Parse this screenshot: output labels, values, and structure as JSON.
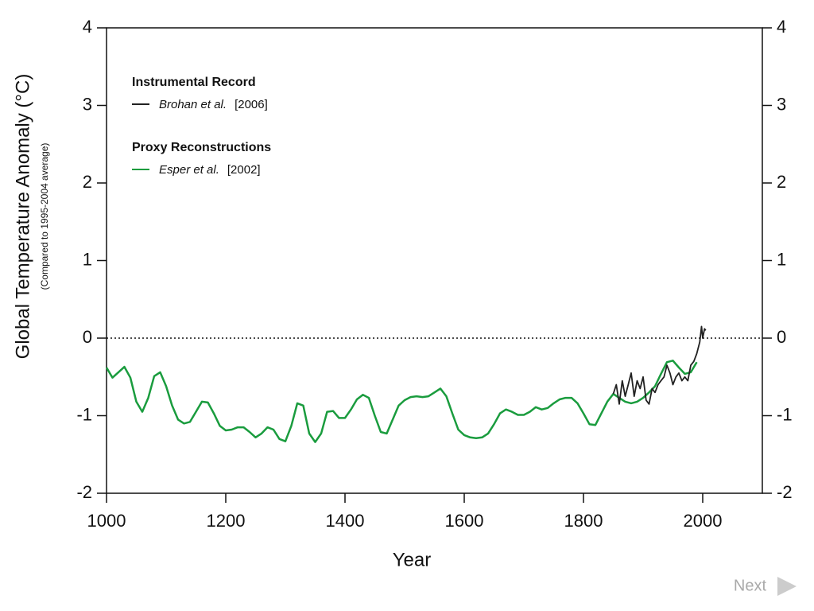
{
  "chart_data": {
    "type": "line",
    "y_label": "Global Temperature Anomaly (°C)",
    "y_sublabel": "(Compared to 1995-2004 average)",
    "x_label": "Year",
    "xlim": [
      1000,
      2100
    ],
    "xticks": [
      1000,
      1200,
      1400,
      1600,
      1800,
      2000
    ],
    "ylim": [
      -2,
      4
    ],
    "yticks": [
      -2,
      -1,
      0,
      1,
      2,
      3,
      4
    ],
    "right_axis": true,
    "hline": 0,
    "series": [
      {
        "group": "Instrumental Record",
        "name": "Brohan et al.",
        "source": "[2006]",
        "color": "#222222",
        "x": [
          1850,
          1855,
          1860,
          1865,
          1870,
          1875,
          1880,
          1885,
          1890,
          1895,
          1900,
          1905,
          1910,
          1915,
          1920,
          1925,
          1930,
          1935,
          1940,
          1945,
          1950,
          1955,
          1960,
          1965,
          1970,
          1975,
          1980,
          1985,
          1990,
          1995,
          1998,
          2000,
          2003,
          2005
        ],
        "values": [
          -0.72,
          -0.6,
          -0.85,
          -0.55,
          -0.75,
          -0.6,
          -0.45,
          -0.75,
          -0.55,
          -0.65,
          -0.5,
          -0.8,
          -0.85,
          -0.65,
          -0.7,
          -0.6,
          -0.55,
          -0.5,
          -0.35,
          -0.45,
          -0.6,
          -0.5,
          -0.45,
          -0.55,
          -0.5,
          -0.55,
          -0.35,
          -0.3,
          -0.2,
          -0.05,
          0.15,
          0.0,
          0.12,
          0.1
        ]
      },
      {
        "group": "Proxy Reconstructions",
        "name": "Esper et al.",
        "source": "[2002]",
        "color": "#1a9c3e",
        "x": [
          1000,
          1010,
          1020,
          1030,
          1040,
          1050,
          1060,
          1070,
          1080,
          1090,
          1100,
          1110,
          1120,
          1130,
          1140,
          1150,
          1160,
          1170,
          1180,
          1190,
          1200,
          1210,
          1220,
          1230,
          1240,
          1250,
          1260,
          1270,
          1280,
          1290,
          1300,
          1310,
          1320,
          1330,
          1340,
          1350,
          1360,
          1370,
          1380,
          1390,
          1400,
          1410,
          1420,
          1430,
          1440,
          1450,
          1460,
          1470,
          1480,
          1490,
          1500,
          1510,
          1520,
          1530,
          1540,
          1550,
          1560,
          1570,
          1580,
          1590,
          1600,
          1610,
          1620,
          1630,
          1640,
          1650,
          1660,
          1670,
          1680,
          1690,
          1700,
          1710,
          1720,
          1730,
          1740,
          1750,
          1760,
          1770,
          1780,
          1790,
          1800,
          1810,
          1820,
          1830,
          1840,
          1850,
          1860,
          1870,
          1880,
          1890,
          1900,
          1910,
          1920,
          1930,
          1940,
          1950,
          1960,
          1970,
          1980,
          1990
        ],
        "values": [
          -0.38,
          -0.51,
          -0.44,
          -0.37,
          -0.51,
          -0.82,
          -0.95,
          -0.77,
          -0.49,
          -0.44,
          -0.62,
          -0.87,
          -1.05,
          -1.1,
          -1.08,
          -0.95,
          -0.82,
          -0.83,
          -0.97,
          -1.13,
          -1.19,
          -1.18,
          -1.15,
          -1.15,
          -1.21,
          -1.28,
          -1.23,
          -1.15,
          -1.18,
          -1.3,
          -1.33,
          -1.13,
          -0.84,
          -0.87,
          -1.23,
          -1.34,
          -1.23,
          -0.95,
          -0.94,
          -1.03,
          -1.03,
          -0.92,
          -0.79,
          -0.73,
          -0.77,
          -1.0,
          -1.21,
          -1.23,
          -1.05,
          -0.87,
          -0.8,
          -0.76,
          -0.75,
          -0.76,
          -0.75,
          -0.7,
          -0.65,
          -0.75,
          -0.97,
          -1.18,
          -1.25,
          -1.28,
          -1.29,
          -1.28,
          -1.23,
          -1.11,
          -0.97,
          -0.92,
          -0.95,
          -0.99,
          -0.99,
          -0.95,
          -0.89,
          -0.92,
          -0.9,
          -0.84,
          -0.79,
          -0.77,
          -0.77,
          -0.84,
          -0.97,
          -1.11,
          -1.12,
          -0.97,
          -0.82,
          -0.72,
          -0.77,
          -0.82,
          -0.84,
          -0.82,
          -0.77,
          -0.7,
          -0.62,
          -0.46,
          -0.31,
          -0.29,
          -0.38,
          -0.46,
          -0.44,
          -0.31
        ]
      }
    ]
  },
  "ui": {
    "next": "Next"
  }
}
